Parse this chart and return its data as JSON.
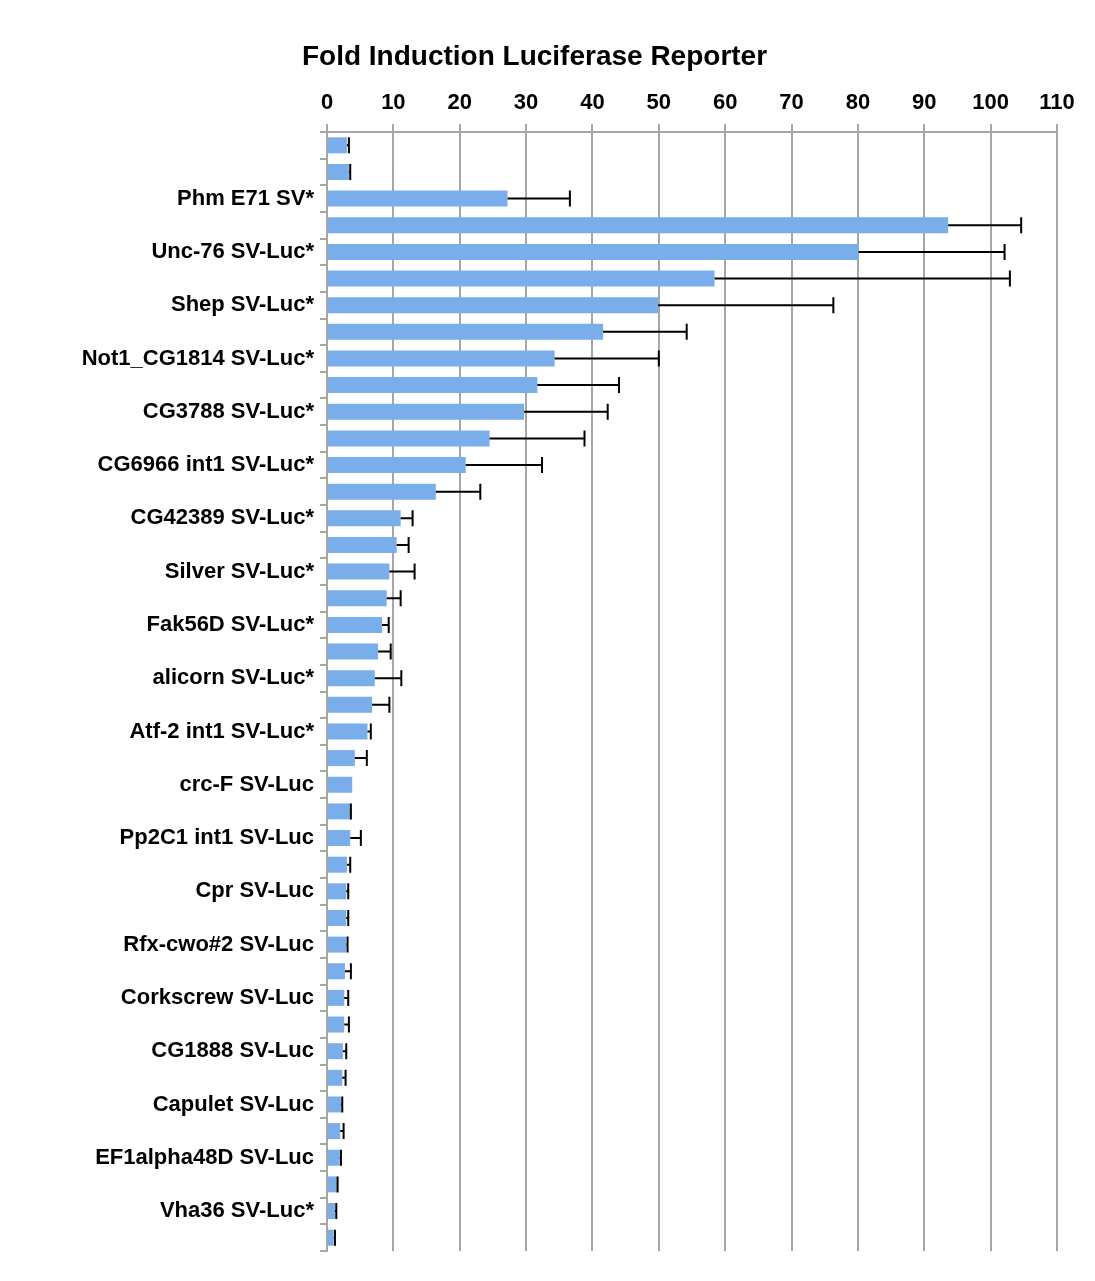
{
  "chart_data": {
    "type": "bar",
    "orientation": "horizontal",
    "title": "Fold Induction Luciferase Reporter",
    "categories": [
      null,
      null,
      "Phm E71 SV*",
      null,
      "Unc-76 SV-Luc*",
      null,
      "Shep SV-Luc*",
      null,
      "Not1_CG1814 SV-Luc*",
      null,
      "CG3788 SV-Luc*",
      null,
      "CG6966 int1 SV-Luc*",
      null,
      "CG42389 SV-Luc*",
      null,
      "Silver SV-Luc*",
      null,
      "Fak56D SV-Luc*",
      null,
      "alicorn SV-Luc*",
      null,
      "Atf-2 int1 SV-Luc*",
      null,
      "crc-F SV-Luc",
      null,
      "Pp2C1 int1 SV-Luc",
      null,
      "Cpr SV-Luc",
      null,
      "Rfx-cwo#2 SV-Luc",
      null,
      "Corkscrew SV-Luc",
      null,
      "CG1888 SV-Luc",
      null,
      "Capulet SV-Luc",
      null,
      "EF1alpha48D SV-Luc",
      null,
      "Vha36 SV-Luc*",
      null
    ],
    "values": [
      3.0,
      3.3,
      27.2,
      93.6,
      80.1,
      58.4,
      49.9,
      41.6,
      34.3,
      31.7,
      29.7,
      24.5,
      20.9,
      16.4,
      11.1,
      10.5,
      9.4,
      9.0,
      8.3,
      7.7,
      7.2,
      6.8,
      6.1,
      4.2,
      3.8,
      3.5,
      3.5,
      3.0,
      2.9,
      2.9,
      2.9,
      2.7,
      2.6,
      2.6,
      2.4,
      2.3,
      2.1,
      2.0,
      1.9,
      1.5,
      1.2,
      1.0
    ],
    "errors": [
      [
        3.0,
        3.3
      ],
      [
        3.3,
        3.5
      ],
      [
        27.2,
        36.6
      ],
      [
        93.6,
        104.6
      ],
      [
        80.1,
        102.1
      ],
      [
        58.4,
        102.9
      ],
      [
        49.9,
        76.3
      ],
      [
        41.6,
        54.2
      ],
      [
        34.3,
        50.0
      ],
      [
        31.7,
        44.0
      ],
      [
        29.7,
        42.3
      ],
      [
        24.5,
        38.8
      ],
      [
        20.9,
        32.4
      ],
      [
        16.4,
        23.1
      ],
      [
        11.1,
        12.9
      ],
      [
        10.5,
        12.3
      ],
      [
        9.4,
        13.2
      ],
      [
        9.0,
        11.1
      ],
      [
        8.3,
        9.3
      ],
      [
        7.7,
        9.6
      ],
      [
        7.2,
        11.2
      ],
      [
        6.8,
        9.4
      ],
      [
        6.1,
        6.6
      ],
      [
        4.2,
        6.0
      ],
      null,
      [
        3.5,
        3.6
      ],
      [
        3.5,
        5.1
      ],
      [
        3.0,
        3.5
      ],
      [
        2.9,
        3.2
      ],
      [
        2.9,
        3.2
      ],
      [
        2.9,
        3.1
      ],
      [
        2.7,
        3.6
      ],
      [
        2.6,
        3.2
      ],
      [
        2.6,
        3.3
      ],
      [
        2.4,
        2.9
      ],
      [
        2.3,
        2.8
      ],
      [
        2.1,
        2.3
      ],
      [
        2.0,
        2.5
      ],
      [
        1.9,
        2.1
      ],
      [
        1.5,
        1.6
      ],
      [
        1.2,
        1.4
      ],
      [
        1.0,
        1.2
      ]
    ],
    "color": "#7aaeea",
    "xlim": [
      0,
      110
    ],
    "xticks": [
      0,
      10,
      20,
      30,
      40,
      50,
      60,
      70,
      80,
      90,
      100,
      110
    ],
    "grid": "x",
    "legend": false
  }
}
